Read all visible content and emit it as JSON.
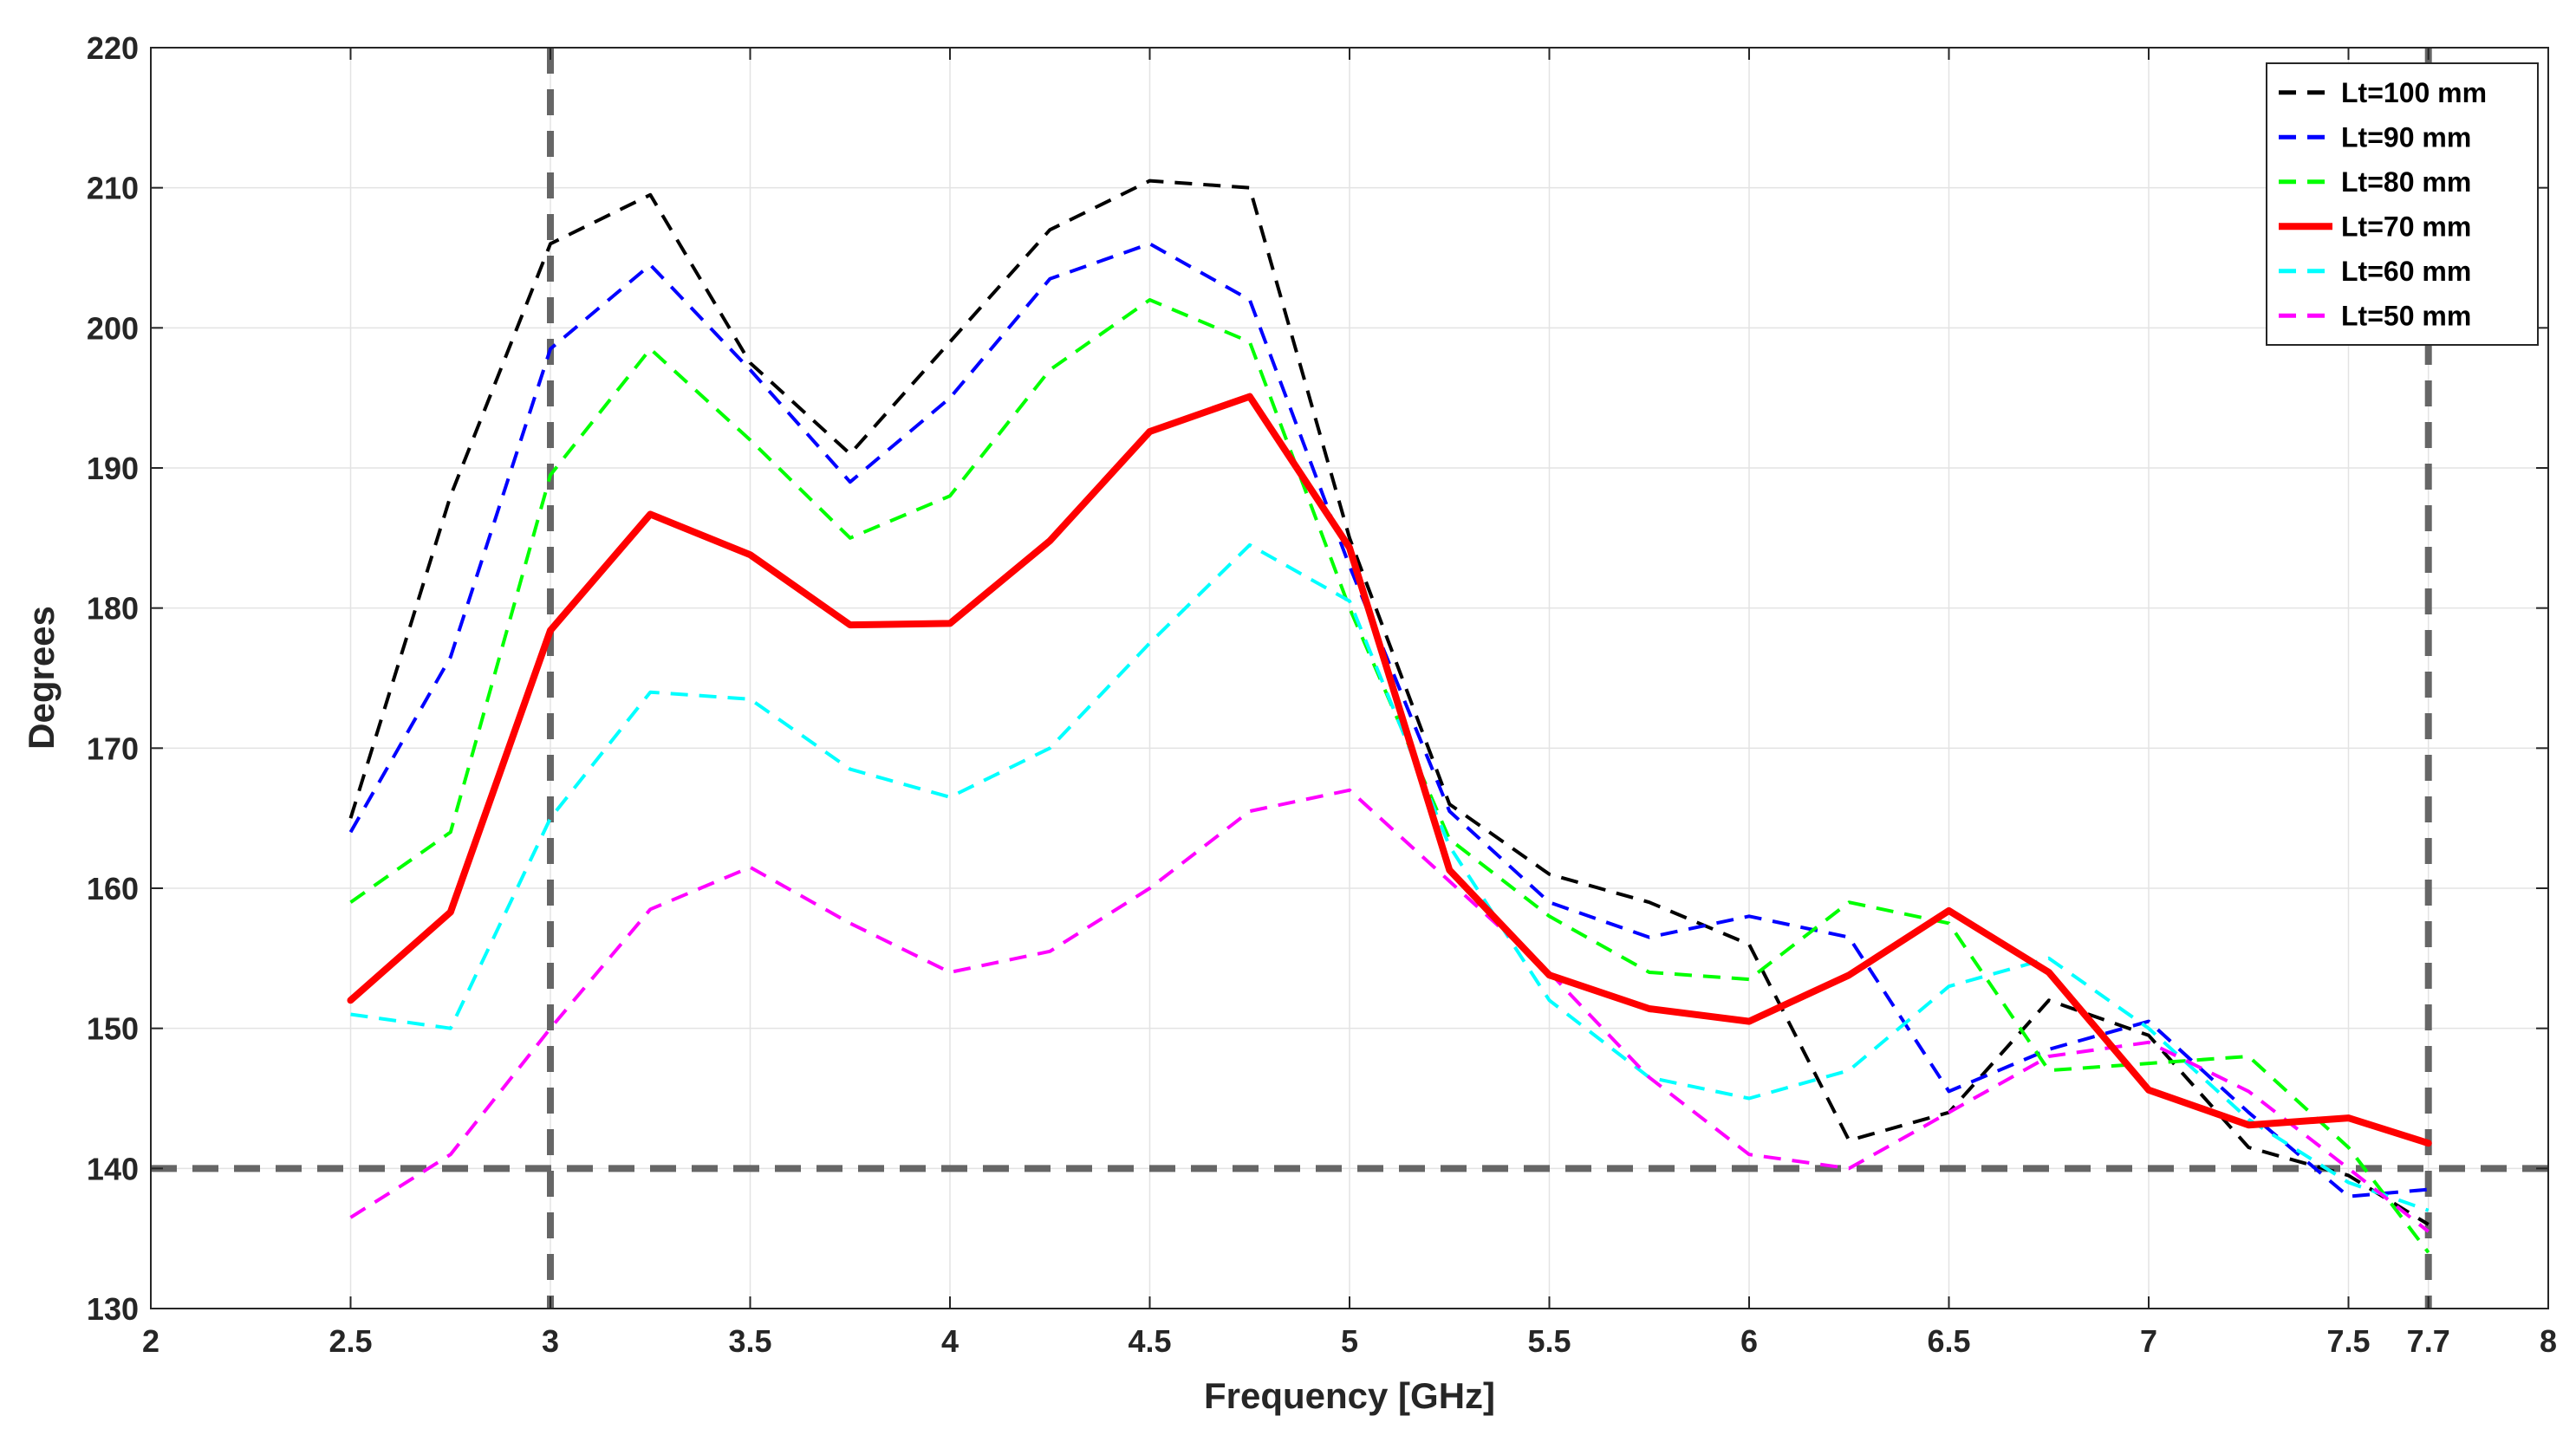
{
  "chart_data": {
    "type": "line",
    "title": "",
    "xlabel": "Frequency [GHz]",
    "ylabel": "Degrees",
    "xlim": [
      2,
      8
    ],
    "ylim": [
      130,
      220
    ],
    "grid": true,
    "legend_position": "top-right",
    "xticks": [
      2,
      2.5,
      3,
      3.5,
      4,
      4.5,
      5,
      5.5,
      6,
      6.5,
      7,
      7.5,
      7.7,
      8
    ],
    "xtick_labels": [
      "2",
      "2.5",
      "3",
      "3.5",
      "4",
      "4.5",
      "5",
      "5.5",
      "6",
      "6.5",
      "7",
      "7.5",
      "7.7",
      "8"
    ],
    "yticks": [
      130,
      140,
      150,
      160,
      170,
      180,
      190,
      200,
      210,
      220
    ],
    "ytick_labels": [
      "130",
      "140",
      "150",
      "160",
      "170",
      "180",
      "190",
      "200",
      "210",
      "220"
    ],
    "x": [
      2.5,
      2.75,
      3,
      3.25,
      3.5,
      3.75,
      4,
      4.25,
      4.5,
      4.75,
      5,
      5.25,
      5.5,
      5.75,
      6,
      6.25,
      6.5,
      6.75,
      7,
      7.25,
      7.5,
      7.7
    ],
    "series": [
      {
        "name": "Lt=100 mm",
        "color": "#000000",
        "dashed": true,
        "values": [
          165,
          188,
          206,
          209.5,
          197.5,
          191,
          199,
          207,
          210.5,
          210,
          185,
          166,
          161,
          159,
          156,
          142,
          144,
          152,
          149.5,
          141.5,
          139.5,
          136
        ]
      },
      {
        "name": "Lt=90 mm",
        "color": "#0000ff",
        "dashed": true,
        "values": [
          164,
          176.5,
          198.5,
          204.5,
          197,
          189,
          195,
          203.5,
          206,
          202,
          183,
          165.5,
          159,
          156.5,
          158,
          156.5,
          145.5,
          148.5,
          150.5,
          144,
          138,
          138.5
        ]
      },
      {
        "name": "Lt=80 mm",
        "color": "#00ff00",
        "dashed": true,
        "values": [
          159,
          164,
          189.5,
          198.5,
          192,
          185,
          188,
          197,
          202,
          199,
          180,
          163.5,
          158,
          154,
          153.5,
          159,
          157.5,
          147,
          147.5,
          148,
          141.5,
          134
        ]
      },
      {
        "name": "Lt=70 mm",
        "color": "#ff0000",
        "dashed": false,
        "values": [
          152,
          158.3,
          178.4,
          186.7,
          183.8,
          178.8,
          178.9,
          184.8,
          192.6,
          195.1,
          184.3,
          161.3,
          153.8,
          151.4,
          150.5,
          153.8,
          158.4,
          154,
          145.6,
          143.1,
          143.6,
          141.8
        ]
      },
      {
        "name": "Lt=60 mm",
        "color": "#00ffff",
        "dashed": true,
        "values": [
          151,
          150,
          165,
          174,
          173.5,
          168.5,
          166.5,
          170,
          177.5,
          184.5,
          180.5,
          163,
          152,
          146.5,
          145,
          147,
          153,
          155,
          150,
          143.5,
          139,
          137
        ]
      },
      {
        "name": "Lt=50 mm",
        "color": "#ff00ff",
        "dashed": true,
        "values": [
          136.5,
          141,
          150,
          158.5,
          161.5,
          157.5,
          154,
          155.5,
          160,
          165.5,
          167,
          160.5,
          154,
          146.5,
          141,
          140,
          144,
          148,
          149,
          145.5,
          140,
          135.5
        ]
      }
    ],
    "reference_lines": [
      {
        "axis": "y",
        "value": 140,
        "color": "#666666"
      },
      {
        "axis": "x",
        "value": 3,
        "color": "#666666"
      },
      {
        "axis": "x",
        "value": 7.7,
        "color": "#666666"
      }
    ]
  }
}
